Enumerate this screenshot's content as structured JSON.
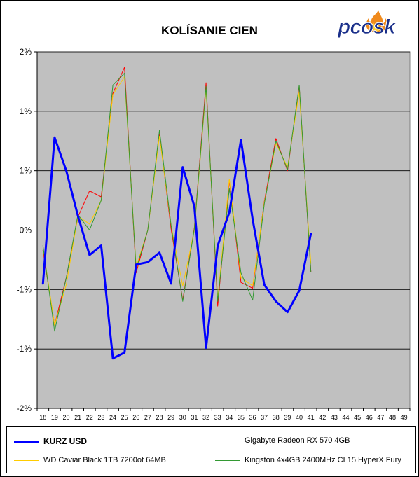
{
  "logo_text": "pcosk",
  "colors": {
    "plot_bg": "#c0c0c0",
    "grid": "#000000",
    "kurz": "#0000ff",
    "gigabyte": "#ff0000",
    "wd": "#ffcc00",
    "kingston": "#339933",
    "logo_blue": "#1a2f8a",
    "logo_flame": "#f08a1c"
  },
  "chart_data": {
    "type": "line",
    "title": "KOLÍSANIE CIEN",
    "xlabel": "",
    "ylabel": "",
    "categories": [
      "18",
      "19",
      "20",
      "21",
      "22",
      "23",
      "24",
      "25",
      "26",
      "27",
      "28",
      "29",
      "30",
      "31",
      "32",
      "33",
      "34",
      "35",
      "36",
      "37",
      "38",
      "39",
      "40",
      "41",
      "42",
      "43",
      "44",
      "45",
      "46",
      "47",
      "48",
      "49"
    ],
    "ylim": [
      -1.5,
      1.5
    ],
    "y_ticks": [
      1.5,
      1.0,
      0.5,
      0.0,
      -0.5,
      -1.0,
      -1.5
    ],
    "y_tick_labels": [
      "2%",
      "1%",
      "1%",
      "0%",
      "-1%",
      "-1%",
      "-2%"
    ],
    "grid": true,
    "legend_position": "bottom",
    "series": [
      {
        "name": "KURZ USD",
        "color_key": "kurz",
        "width": 3,
        "values": [
          -0.45,
          0.78,
          0.5,
          0.12,
          -0.21,
          -0.13,
          -1.08,
          -1.03,
          -0.29,
          -0.27,
          -0.19,
          -0.45,
          0.53,
          0.2,
          -0.99,
          -0.13,
          0.15,
          0.76,
          0.09,
          -0.46,
          -0.6,
          -0.69,
          -0.51,
          -0.03,
          null,
          null,
          null,
          null,
          null,
          null,
          null,
          null
        ]
      },
      {
        "name": "Gigabyte Radeon RX 570 4GB",
        "color_key": "gigabyte",
        "width": 1,
        "values": [
          -0.17,
          -0.8,
          -0.4,
          0.11,
          0.33,
          0.28,
          1.15,
          1.37,
          -0.36,
          0.0,
          0.81,
          0.01,
          -0.59,
          0.02,
          1.24,
          -0.64,
          0.42,
          -0.44,
          -0.49,
          0.24,
          0.77,
          0.5,
          1.21,
          -0.35,
          null,
          null,
          null,
          null,
          null,
          null,
          null,
          null
        ]
      },
      {
        "name": "WD Caviar Black 1TB 7200ot 64MB",
        "color_key": "wd",
        "width": 1,
        "values": [
          -0.14,
          -0.8,
          -0.46,
          0.12,
          0.05,
          0.25,
          1.14,
          1.29,
          -0.31,
          0.0,
          0.79,
          0.04,
          -0.47,
          0.0,
          1.19,
          -0.58,
          0.43,
          -0.4,
          -0.47,
          0.23,
          0.73,
          0.53,
          1.16,
          -0.28,
          null,
          null,
          null,
          null,
          null,
          null,
          null,
          null
        ]
      },
      {
        "name": "Kingston 4x4GB 2400MHz CL15 HyperX Fury",
        "color_key": "kingston",
        "width": 1,
        "values": [
          -0.13,
          -0.85,
          -0.4,
          0.13,
          0.0,
          0.25,
          1.22,
          1.32,
          -0.33,
          0.0,
          0.84,
          0.04,
          -0.6,
          0.01,
          1.21,
          -0.6,
          0.35,
          -0.36,
          -0.59,
          0.22,
          0.75,
          0.51,
          1.22,
          -0.35,
          null,
          null,
          null,
          null,
          null,
          null,
          null,
          null
        ]
      }
    ]
  }
}
